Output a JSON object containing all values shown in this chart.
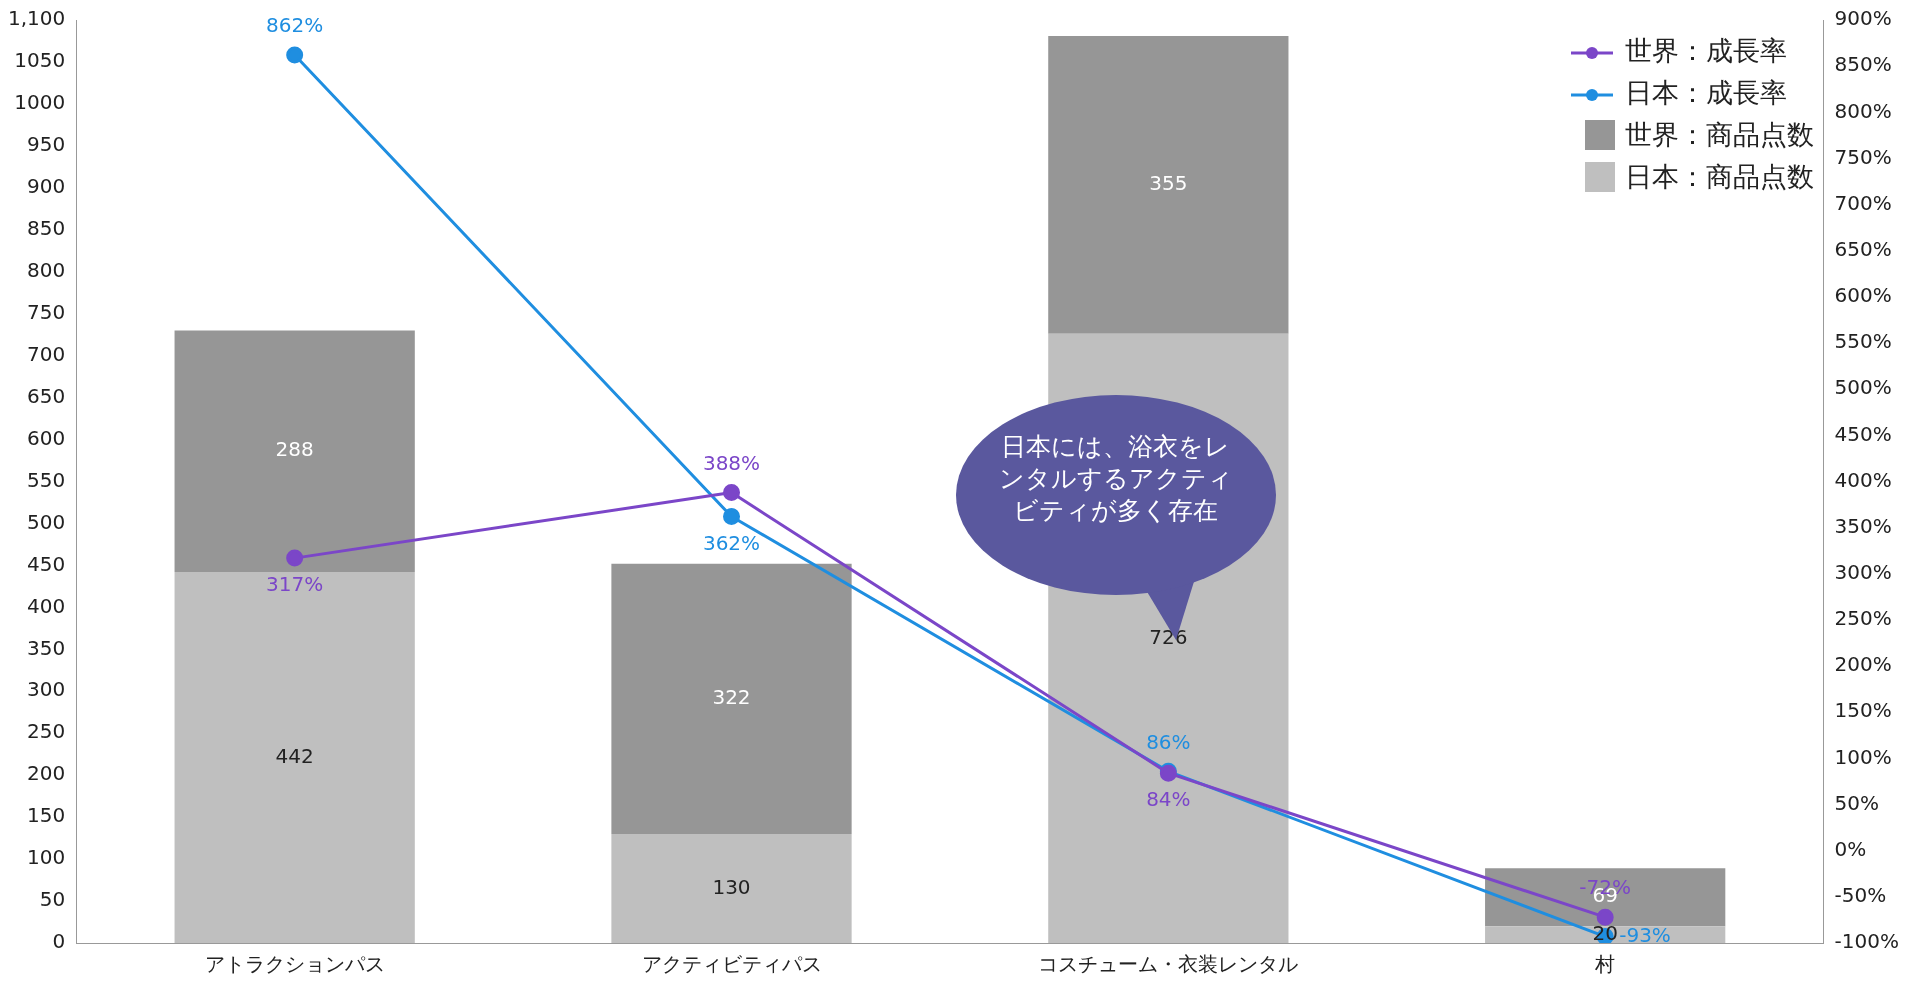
{
  "chart_data": {
    "type": "bar",
    "stacked": true,
    "categories": [
      "アトラクションパス",
      "アクティビティパス",
      "コスチューム・衣装レンタル",
      "村"
    ],
    "series": [
      {
        "name": "日本：商品点数",
        "color": "#bfbfbf",
        "values": [
          442,
          130,
          726,
          20
        ]
      },
      {
        "name": "世界：商品点数",
        "color": "#969696",
        "values": [
          288,
          322,
          355,
          69
        ]
      },
      {
        "name": "世界：成長率",
        "type": "line",
        "axis": "y2",
        "color": "#7b46c8",
        "values": [
          317,
          388,
          84,
          -72
        ],
        "value_labels": [
          "317%",
          "388%",
          "84%",
          "-72%"
        ]
      },
      {
        "name": "日本：成長率",
        "type": "line",
        "axis": "y2",
        "color": "#1f8ee0",
        "values": [
          862,
          362,
          86,
          -93
        ],
        "value_labels": [
          "862%",
          "362%",
          "86%",
          "-93%"
        ]
      }
    ],
    "data_labels": true,
    "marker": "circle",
    "legend": "top right",
    "grid": false,
    "ylim": [
      0,
      1100
    ],
    "yticks": [
      0,
      50,
      100,
      150,
      200,
      250,
      300,
      350,
      400,
      450,
      500,
      550,
      600,
      650,
      700,
      750,
      800,
      850,
      900,
      950,
      1000,
      1050,
      {
        "value": 1100,
        "label": "1,100"
      }
    ],
    "y2lim": [
      -100,
      900
    ],
    "y2ticks": [
      {
        "value": -100,
        "label": "-100%"
      },
      {
        "value": -50,
        "label": "-50%"
      },
      {
        "value": 0,
        "label": "0%"
      },
      {
        "value": 50,
        "label": "50%"
      },
      {
        "value": 100,
        "label": "100%"
      },
      {
        "value": 150,
        "label": "150%"
      },
      {
        "value": 200,
        "label": "200%"
      },
      {
        "value": 250,
        "label": "250%"
      },
      {
        "value": 300,
        "label": "300%"
      },
      {
        "value": 350,
        "label": "350%"
      },
      {
        "value": 400,
        "label": "400%"
      },
      {
        "value": 450,
        "label": "450%"
      },
      {
        "value": 500,
        "label": "500%"
      },
      {
        "value": 550,
        "label": "550%"
      },
      {
        "value": 600,
        "label": "600%"
      },
      {
        "value": 650,
        "label": "650%"
      },
      {
        "value": 700,
        "label": "700%"
      },
      {
        "value": 750,
        "label": "750%"
      },
      {
        "value": 800,
        "label": "800%"
      },
      {
        "value": 850,
        "label": "850%"
      },
      {
        "value": 900,
        "label": "900%"
      }
    ],
    "annotations": [
      "日本には、浴衣をレンタルするアクティビティが多く存在"
    ]
  }
}
